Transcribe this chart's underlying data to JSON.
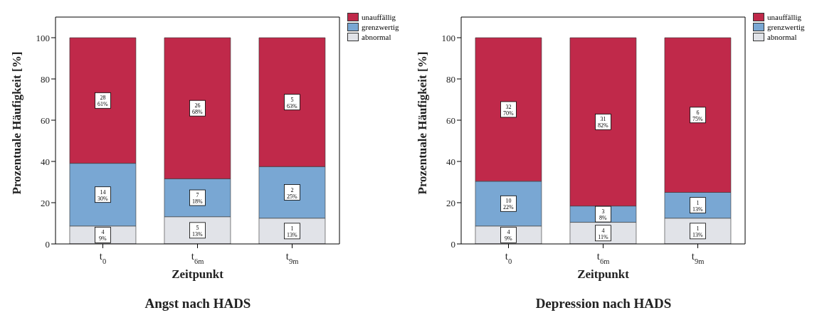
{
  "chart_data": [
    {
      "type": "bar",
      "stacked": true,
      "title": "Angst nach HADS",
      "xlabel": "Zeitpunkt",
      "ylabel": "Prozentuale Häufigkeit [%]",
      "categories": [
        "t$_{0}$",
        "t$_{6m}$",
        "t$_{9m}$"
      ],
      "ylim": [
        0,
        110
      ],
      "yticks": [
        0,
        20,
        40,
        60,
        80,
        100
      ],
      "grid": false,
      "legend": "top right",
      "series": [
        {
          "name": "abnormal",
          "color": "#e1e3e8",
          "values": [
            8.7,
            13.2,
            12.5
          ],
          "value_labels": [
            "4\n9%",
            "5\n13%",
            "1\n13%"
          ]
        },
        {
          "name": "grenzwertig",
          "color": "#79a7d3",
          "values": [
            30.4,
            18.4,
            25.0
          ],
          "value_labels": [
            "14\n30%",
            "7\n18%",
            "2\n25%"
          ]
        },
        {
          "name": "unauffällig",
          "color": "#c0294a",
          "values": [
            60.9,
            68.4,
            62.5
          ],
          "value_labels": [
            "28\n61%",
            "26\n68%",
            "5\n63%"
          ]
        }
      ]
    },
    {
      "type": "bar",
      "stacked": true,
      "title": "Depression nach HADS",
      "xlabel": "Zeitpunkt",
      "ylabel": "Prozentuale Häufigkeit [%]",
      "categories": [
        "t$_{0}$",
        "t$_{6m}$",
        "t$_{9m}$"
      ],
      "ylim": [
        0,
        110
      ],
      "yticks": [
        0,
        20,
        40,
        60,
        80,
        100
      ],
      "grid": false,
      "legend": "top right",
      "series": [
        {
          "name": "abnormal",
          "color": "#e1e3e8",
          "values": [
            8.7,
            10.5,
            12.5
          ],
          "value_labels": [
            "4\n9%",
            "4\n11%",
            "1\n13%"
          ]
        },
        {
          "name": "grenzwertig",
          "color": "#79a7d3",
          "values": [
            21.7,
            7.9,
            12.5
          ],
          "value_labels": [
            "10\n22%",
            "3\n8%",
            "1\n13%"
          ]
        },
        {
          "name": "unauffällig",
          "color": "#c0294a",
          "values": [
            69.6,
            81.6,
            75.0
          ],
          "value_labels": [
            "32\n70%",
            "31\n82%",
            "6\n75%"
          ]
        }
      ]
    }
  ]
}
